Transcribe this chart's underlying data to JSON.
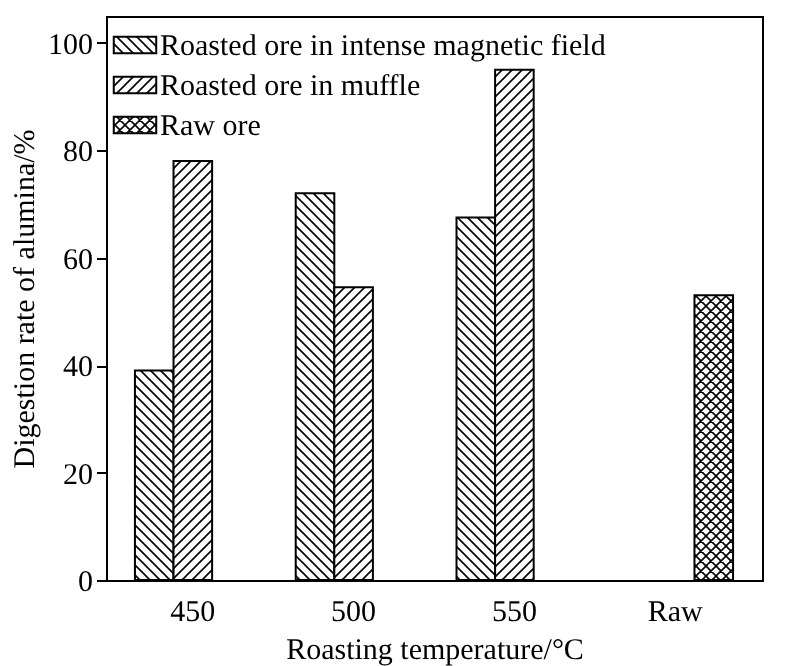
{
  "chart_data": {
    "type": "bar",
    "xlabel": "Roasting temperature/°C",
    "ylabel": "Digestion rate of alumina/%",
    "categories": [
      "450",
      "500",
      "550",
      "Raw"
    ],
    "series": [
      {
        "name": "Roasted ore in intense magnetic field",
        "color": "#000000",
        "values": [
          39,
          72,
          67.5,
          null
        ]
      },
      {
        "name": "Roasted ore in muffle",
        "color": "#000000",
        "values": [
          78,
          54.5,
          95,
          null
        ]
      },
      {
        "name": "Raw ore",
        "color": "#000000",
        "values": [
          null,
          null,
          null,
          53
        ]
      }
    ],
    "ylim": [
      0,
      105
    ],
    "yticks": [
      0,
      20,
      40,
      60,
      80,
      100
    ],
    "legend": "top left",
    "grid": false
  }
}
